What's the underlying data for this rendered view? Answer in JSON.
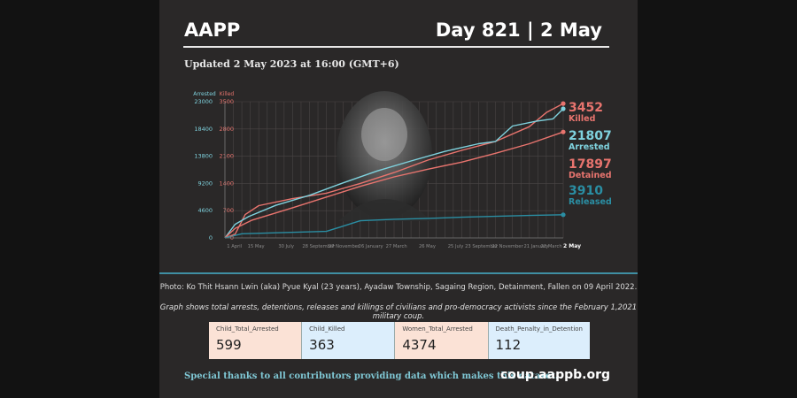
{
  "header": {
    "brand": "AAPP",
    "day": "Day 821 | 2 May",
    "updated": "Updated 2 May 2023 at 16:00 (GMT+6)"
  },
  "chart_data": {
    "type": "line",
    "left_axis_title": "Arrested",
    "right_axis_title": "Killed",
    "left_ticks": [
      0,
      4600,
      9200,
      13800,
      18400,
      23000
    ],
    "right_ticks": [
      0,
      700,
      1400,
      2100,
      2800,
      3500
    ],
    "left_tick_labels": [
      "0",
      "4600",
      "9200",
      "13800",
      "18400",
      "23000"
    ],
    "right_tick_labels": [
      "0",
      "700",
      "1400",
      "2100",
      "2800",
      "3500"
    ],
    "ylim_left": [
      0,
      23000
    ],
    "ylim_right": [
      0,
      3500
    ],
    "x_tick_labels": [
      "1 April",
      "15 May",
      "30 July",
      "28 September",
      "27 November",
      "26 January",
      "27 March",
      "26 May",
      "25 July",
      "23 September",
      "22 November",
      "21 January",
      "22 March",
      "2 May"
    ],
    "x_pos": [
      0.028,
      0.092,
      0.181,
      0.277,
      0.352,
      0.431,
      0.507,
      0.598,
      0.682,
      0.758,
      0.835,
      0.92,
      0.965,
      1.0
    ],
    "grid": true,
    "series": [
      {
        "name": "Killed",
        "axis": "right",
        "color": "#e8746e",
        "final_value": 3452,
        "points": [
          [
            0,
            0
          ],
          [
            0.03,
            95
          ],
          [
            0.06,
            600
          ],
          [
            0.1,
            830
          ],
          [
            0.2,
            1010
          ],
          [
            0.3,
            1150
          ],
          [
            0.4,
            1400
          ],
          [
            0.5,
            1680
          ],
          [
            0.6,
            2000
          ],
          [
            0.7,
            2250
          ],
          [
            0.8,
            2480
          ],
          [
            0.9,
            2860
          ],
          [
            0.95,
            3220
          ],
          [
            1.0,
            3452
          ]
        ]
      },
      {
        "name": "Arrested",
        "axis": "left",
        "color": "#7fd2de",
        "final_value": 21807,
        "points": [
          [
            0,
            0
          ],
          [
            0.03,
            2300
          ],
          [
            0.07,
            3600
          ],
          [
            0.15,
            5500
          ],
          [
            0.25,
            7200
          ],
          [
            0.35,
            9300
          ],
          [
            0.45,
            11300
          ],
          [
            0.55,
            13000
          ],
          [
            0.65,
            14600
          ],
          [
            0.75,
            15900
          ],
          [
            0.8,
            16300
          ],
          [
            0.85,
            18900
          ],
          [
            0.92,
            19700
          ],
          [
            0.97,
            20100
          ],
          [
            1.0,
            21807
          ]
        ]
      },
      {
        "name": "Detained",
        "axis": "left",
        "color": "#e8746e",
        "final_value": 17897,
        "points": [
          [
            0,
            0
          ],
          [
            0.03,
            1600
          ],
          [
            0.08,
            3000
          ],
          [
            0.2,
            5100
          ],
          [
            0.3,
            6900
          ],
          [
            0.4,
            8700
          ],
          [
            0.5,
            10300
          ],
          [
            0.6,
            11600
          ],
          [
            0.7,
            12800
          ],
          [
            0.8,
            14300
          ],
          [
            0.9,
            15900
          ],
          [
            1.0,
            17897
          ]
        ]
      },
      {
        "name": "Released",
        "axis": "left",
        "color": "#2a8ea3",
        "final_value": 3910,
        "points": [
          [
            0,
            0
          ],
          [
            0.05,
            700
          ],
          [
            0.3,
            1100
          ],
          [
            0.4,
            2900
          ],
          [
            0.5,
            3150
          ],
          [
            0.6,
            3300
          ],
          [
            0.7,
            3500
          ],
          [
            0.8,
            3650
          ],
          [
            0.9,
            3790
          ],
          [
            1.0,
            3910
          ]
        ]
      }
    ],
    "legend": [
      {
        "value": "3452",
        "label": "Killed",
        "color": "#e8746e"
      },
      {
        "value": "21807",
        "label": "Arrested",
        "color": "#7fd2de"
      },
      {
        "value": "17897",
        "label": "Detained",
        "color": "#e8746e"
      },
      {
        "value": "3910",
        "label": "Released",
        "color": "#2a8ea3"
      }
    ]
  },
  "photo_credit": "Photo: Ko Thit Hsann Lwin (aka) Pyue Kyal (23 years), Ayadaw Township, Sagaing Region, Detainment,  Fallen on 09 April 2022.",
  "caption": "Graph shows total arrests, detentions, releases and killings of civilians and pro-democracy activists since the February 1,2021 military coup.",
  "stats": [
    {
      "label": "Child_Total_Arrested",
      "value": "599",
      "bg": "#fbe2d6"
    },
    {
      "label": "Child_Killed",
      "value": "363",
      "bg": "#dceefc"
    },
    {
      "label": "Women_Total_Arrested",
      "value": "4374",
      "bg": "#fbe2d6"
    },
    {
      "label": "Death_Penalty_in_Detention",
      "value": "112",
      "bg": "#dceefc"
    }
  ],
  "footer": {
    "thanks": "Special thanks to all contributors providing data which makes this dataset.",
    "site": "coup.aappb.org"
  }
}
